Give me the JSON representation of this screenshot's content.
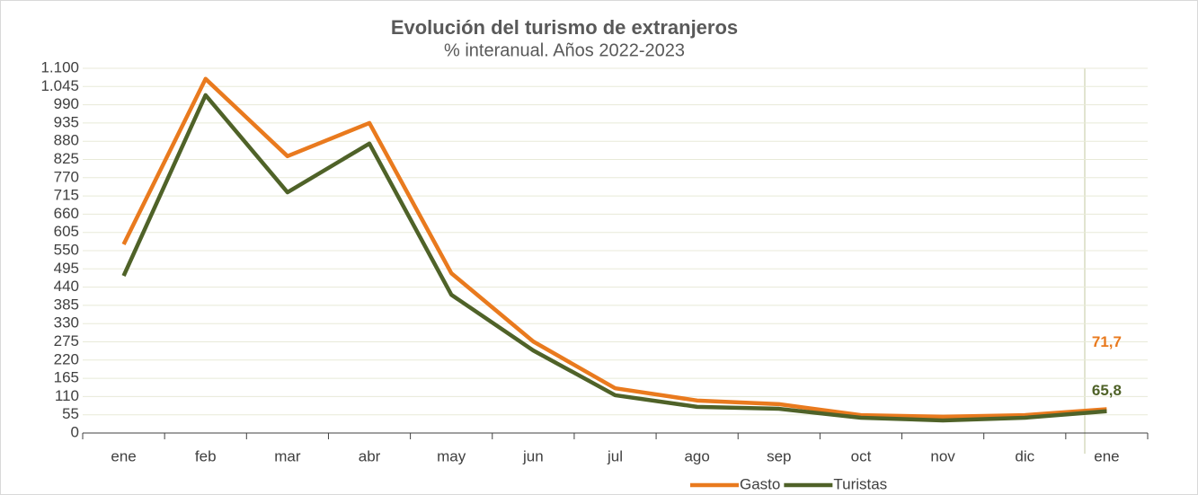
{
  "chart_data": {
    "type": "line",
    "title": "Evolución del turismo de extranjeros",
    "subtitle": "% interanual. Años 2022-2023",
    "categories": [
      "ene",
      "feb",
      "mar",
      "abr",
      "may",
      "jun",
      "jul",
      "ago",
      "sep",
      "oct",
      "nov",
      "dic",
      "ene"
    ],
    "series": [
      {
        "name": "Gasto",
        "color": "#e97a1e",
        "values": [
          569,
          1068,
          835,
          935,
          482,
          276,
          135,
          98,
          87,
          54,
          49,
          54,
          71.7
        ],
        "value_labels": [
          null,
          null,
          null,
          null,
          null,
          null,
          null,
          null,
          null,
          null,
          null,
          null,
          "71,7"
        ]
      },
      {
        "name": "Turistas",
        "color": "#4f6228",
        "values": [
          474,
          1019,
          726,
          873,
          417,
          249,
          114,
          79,
          73,
          46,
          38,
          46,
          65.8
        ],
        "value_labels": [
          null,
          null,
          null,
          null,
          null,
          null,
          null,
          null,
          null,
          null,
          null,
          null,
          "65,8"
        ]
      }
    ],
    "ylim": [
      0,
      1100
    ],
    "yticks": [
      0,
      55,
      110,
      165,
      220,
      275,
      330,
      385,
      440,
      495,
      550,
      605,
      660,
      715,
      770,
      825,
      880,
      935,
      990,
      {
        "value": 1045,
        "label": "1.045"
      },
      {
        "value": 1100,
        "label": "1.100"
      }
    ],
    "grid": true,
    "legend": "bottom"
  }
}
